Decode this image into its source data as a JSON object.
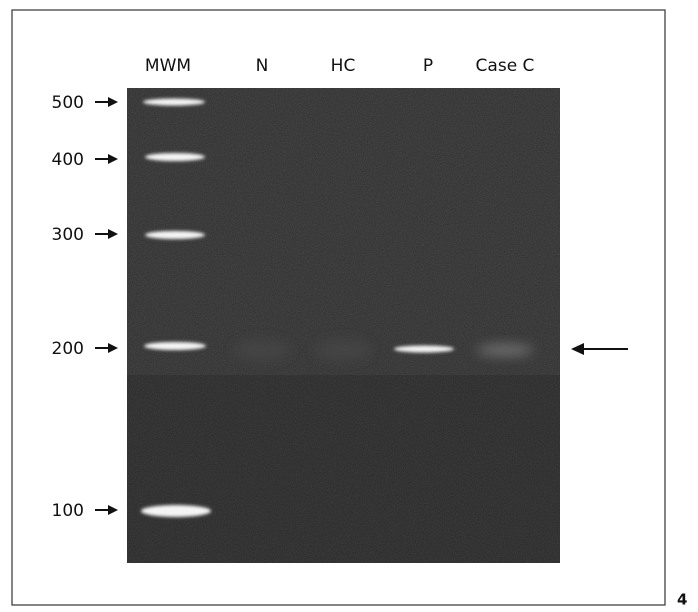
{
  "lanes": [
    "MWM",
    "N",
    "HC",
    "P",
    "Case C"
  ],
  "size_markers": [
    "500",
    "400",
    "300",
    "200",
    "100"
  ],
  "panel_label": "4"
}
